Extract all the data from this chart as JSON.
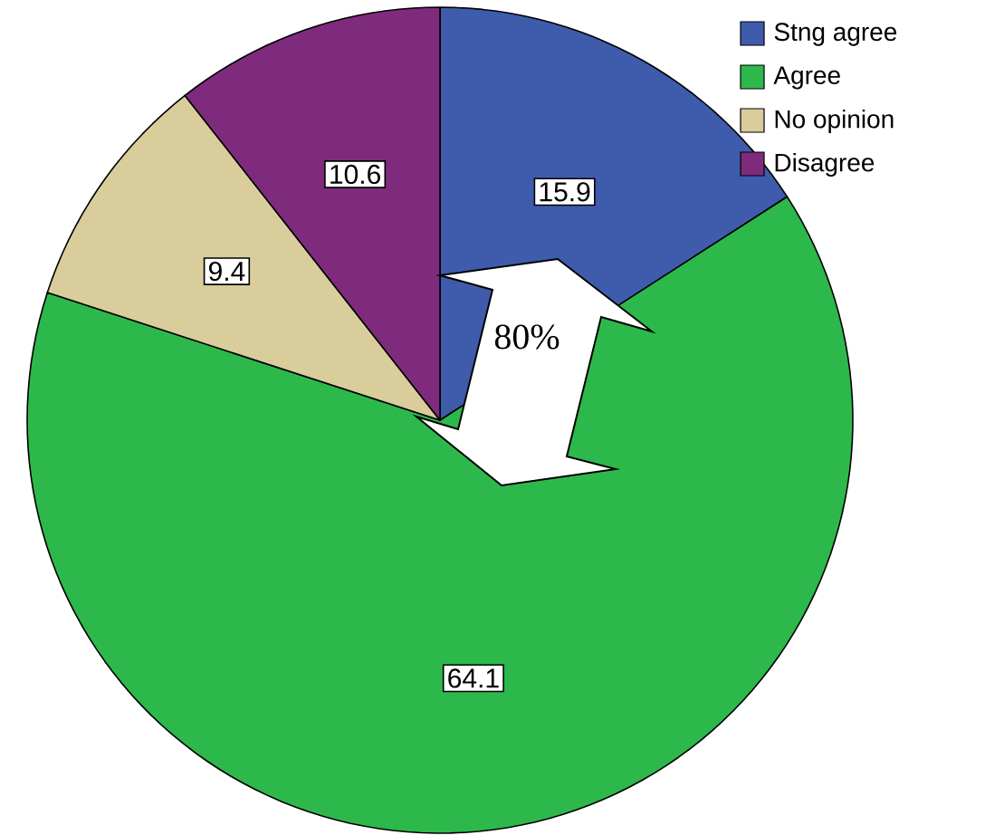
{
  "chart_data": {
    "type": "pie",
    "categories": [
      "Stng agree",
      "Agree",
      "No opinion",
      "Disagree"
    ],
    "values": [
      15.9,
      64.1,
      9.4,
      10.6
    ],
    "colors": [
      "#3f5bab",
      "#2db84b",
      "#d8cd9b",
      "#7f2b7d"
    ],
    "data_labels": true,
    "legend": "top right",
    "annotations": [
      "80%"
    ]
  }
}
